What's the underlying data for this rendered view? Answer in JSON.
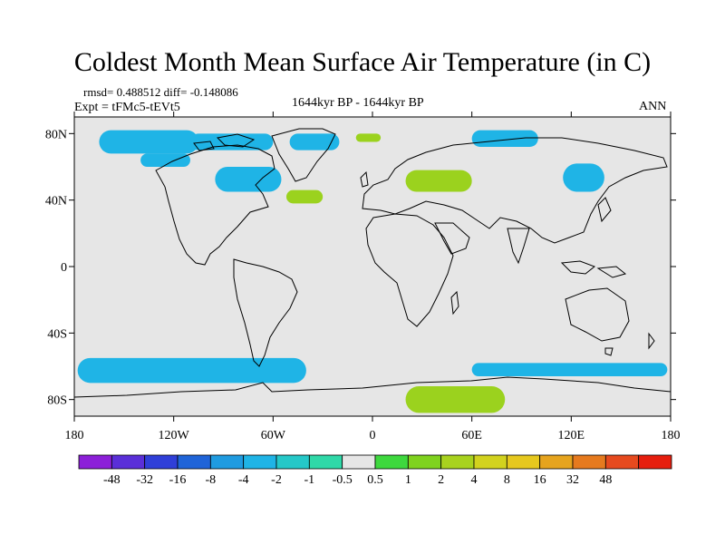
{
  "title": "Coldest Month Mean Surface Air Temperature (in C)",
  "stats": {
    "rmsd_diff": "rmsd= 0.488512 diff= -0.148086"
  },
  "expt": "Expt = tFMc5-tEVt5",
  "period": "1644kyr BP - 1644kyr BP",
  "season": "ANN",
  "map": {
    "projection": "cylindrical equidistant",
    "lon_range": [
      -180,
      180
    ],
    "lat_range": [
      -90,
      90
    ],
    "background_color": "#e6e6e6",
    "coastline_color": "#000000",
    "lat_ticks": [
      {
        "value": 80,
        "label": "80N"
      },
      {
        "value": 40,
        "label": "40N"
      },
      {
        "value": 0,
        "label": "0"
      },
      {
        "value": -40,
        "label": "40S"
      },
      {
        "value": -80,
        "label": "80S"
      }
    ],
    "lon_ticks": [
      {
        "value": -180,
        "label": "180"
      },
      {
        "value": -120,
        "label": "120W"
      },
      {
        "value": -60,
        "label": "60W"
      },
      {
        "value": 0,
        "label": "0"
      },
      {
        "value": 60,
        "label": "60E"
      },
      {
        "value": 120,
        "label": "120E"
      },
      {
        "value": 180,
        "label": "180"
      }
    ]
  },
  "colorbar": {
    "colors": [
      "#8c1fd8",
      "#5a2fd8",
      "#2f3fd8",
      "#1f64d8",
      "#1f9be0",
      "#1fb4e6",
      "#25c8c8",
      "#2fd8a8",
      "#e6e6e6",
      "#3ed83e",
      "#7fd21e",
      "#a8d21e",
      "#d2d21e",
      "#e6c81e",
      "#e6a41e",
      "#e67a1e",
      "#e64a1e",
      "#e61e0e"
    ],
    "labels": [
      "-48",
      "-32",
      "-16",
      "-8",
      "-4",
      "-2",
      "-1",
      "-0.5",
      "0.5",
      "1",
      "2",
      "4",
      "8",
      "16",
      "32",
      "48"
    ]
  },
  "anomaly_regions": [
    {
      "kind": "cool",
      "lon_min": -165,
      "lon_max": -105,
      "lat_min": 68,
      "lat_max": 82
    },
    {
      "kind": "cool",
      "lon_min": -140,
      "lon_max": -110,
      "lat_min": 60,
      "lat_max": 68
    },
    {
      "kind": "cool",
      "lon_min": -110,
      "lon_max": -60,
      "lat_min": 70,
      "lat_max": 80
    },
    {
      "kind": "cool",
      "lon_min": -95,
      "lon_max": -55,
      "lat_min": 45,
      "lat_max": 60
    },
    {
      "kind": "cool",
      "lon_min": -50,
      "lon_max": -20,
      "lat_min": 70,
      "lat_max": 80
    },
    {
      "kind": "cool",
      "lon_min": 60,
      "lon_max": 100,
      "lat_min": 72,
      "lat_max": 82
    },
    {
      "kind": "cool",
      "lon_min": 115,
      "lon_max": 140,
      "lat_min": 45,
      "lat_max": 62
    },
    {
      "kind": "cool",
      "lon_min": -178,
      "lon_max": -40,
      "lat_min": -70,
      "lat_max": -55
    },
    {
      "kind": "cool",
      "lon_min": 60,
      "lon_max": 178,
      "lat_min": -66,
      "lat_max": -58
    },
    {
      "kind": "warm",
      "lon_min": -52,
      "lon_max": -30,
      "lat_min": 38,
      "lat_max": 46
    },
    {
      "kind": "warm",
      "lon_min": 20,
      "lon_max": 60,
      "lat_min": 45,
      "lat_max": 58
    },
    {
      "kind": "warm",
      "lon_min": -10,
      "lon_max": 5,
      "lat_min": 75,
      "lat_max": 80
    },
    {
      "kind": "warm",
      "lon_min": 20,
      "lon_max": 80,
      "lat_min": -88,
      "lat_max": -72
    }
  ]
}
